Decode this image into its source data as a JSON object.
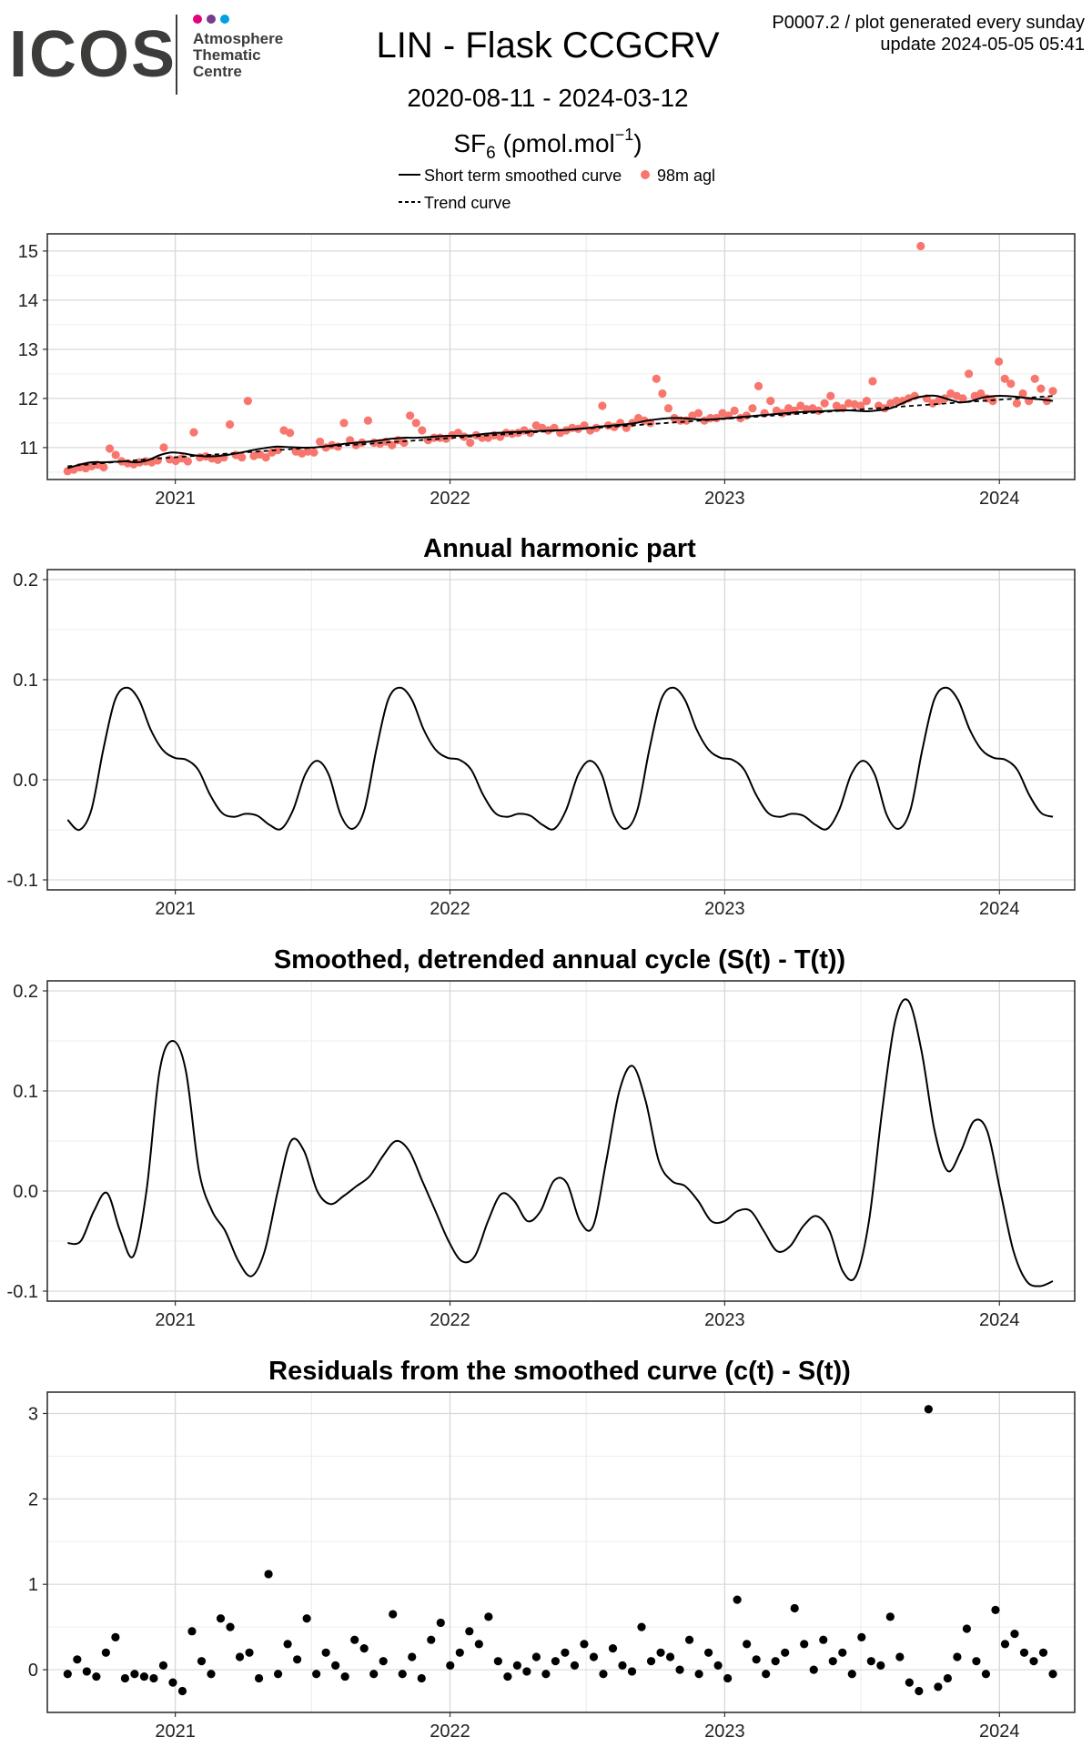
{
  "header": {
    "logo_text": "ICOS",
    "logo_subtitle": [
      "Atmosphere",
      "Thematic",
      "Centre"
    ],
    "logo_dot_colors": [
      "#e5007e",
      "#7a3b8f",
      "#00a0e3"
    ],
    "title": "LIN - Flask CCGCRV",
    "date_range": "2020-08-11 - 2024-03-12",
    "species_main": "SF",
    "species_sub": "6",
    "species_unit_prefix": " (ρmol.mol",
    "species_unit_sup": "−1",
    "species_unit_suffix": ")",
    "info_line1": "P0007.2 / plot generated every sunday",
    "info_line2": "update  2024-05-05 05:41"
  },
  "legend": {
    "smoothed_label": "Short term smoothed curve",
    "points_label": "98m agl",
    "trend_label": "Trend curve"
  },
  "colors": {
    "points": "#f8766d",
    "line": "#000000",
    "grid_major": "#d9d9d9",
    "grid_minor": "#eeeeee"
  },
  "chart_data": [
    {
      "type": "scatter",
      "title": "",
      "xlabel": "",
      "ylabel": "",
      "x_range": [
        "2020-07-15",
        "2024-04-10"
      ],
      "xticks": [
        "2021",
        "2022",
        "2023",
        "2024"
      ],
      "ylim": [
        10.35,
        15.35
      ],
      "yticks": [
        11,
        12,
        13,
        14,
        15
      ],
      "grid": true,
      "series": [
        {
          "name": "98m agl",
          "style": "points",
          "color": "#f8766d",
          "x_start": "2020-08-11",
          "x_end": "2024-03-12",
          "y": [
            10.52,
            10.55,
            10.6,
            10.58,
            10.62,
            10.65,
            10.6,
            10.98,
            10.85,
            10.72,
            10.68,
            10.66,
            10.7,
            10.72,
            10.7,
            10.74,
            11.0,
            10.76,
            10.73,
            10.78,
            10.72,
            11.31,
            10.8,
            10.82,
            10.78,
            10.75,
            10.8,
            11.47,
            10.85,
            10.8,
            11.95,
            10.83,
            10.86,
            10.8,
            10.9,
            10.95,
            11.35,
            11.3,
            10.92,
            10.88,
            10.92,
            10.9,
            11.12,
            11.0,
            11.05,
            11.02,
            11.5,
            11.15,
            11.05,
            11.1,
            11.55,
            11.1,
            11.08,
            11.12,
            11.05,
            11.15,
            11.1,
            11.65,
            11.5,
            11.35,
            11.15,
            11.2,
            11.2,
            11.18,
            11.25,
            11.3,
            11.22,
            11.1,
            11.25,
            11.2,
            11.2,
            11.25,
            11.22,
            11.3,
            11.28,
            11.3,
            11.35,
            11.3,
            11.45,
            11.4,
            11.35,
            11.4,
            11.3,
            11.35,
            11.4,
            11.38,
            11.45,
            11.35,
            11.4,
            11.85,
            11.45,
            11.42,
            11.5,
            11.4,
            11.5,
            11.6,
            11.55,
            11.5,
            12.4,
            12.1,
            11.8,
            11.6,
            11.55,
            11.55,
            11.65,
            11.7,
            11.55,
            11.6,
            11.6,
            11.7,
            11.65,
            11.75,
            11.6,
            11.65,
            11.8,
            12.25,
            11.7,
            11.95,
            11.75,
            11.7,
            11.8,
            11.75,
            11.85,
            11.78,
            11.8,
            11.75,
            11.9,
            12.05,
            11.85,
            11.8,
            11.9,
            11.88,
            11.85,
            11.95,
            12.35,
            11.85,
            11.8,
            11.9,
            11.95,
            11.95,
            12.0,
            12.05,
            15.1,
            12.0,
            11.9,
            11.95,
            12.0,
            12.1,
            12.05,
            12.0,
            12.5,
            12.05,
            12.1,
            12.0,
            11.95,
            12.75,
            12.4,
            12.3,
            11.9,
            12.1,
            11.95,
            12.4,
            12.2,
            11.95,
            12.15
          ]
        },
        {
          "name": "Short term smoothed curve",
          "style": "solid",
          "color": "#000000",
          "x_start": "2020-08-11",
          "x_end": "2024-03-12",
          "y": [
            10.58,
            10.65,
            10.7,
            10.7,
            10.71,
            10.72,
            10.7,
            10.75,
            10.85,
            10.9,
            10.88,
            10.84,
            10.82,
            10.83,
            10.86,
            10.9,
            10.95,
            10.99,
            11.02,
            11.01,
            11.0,
            11.0,
            11.02,
            11.05,
            11.08,
            11.1,
            11.12,
            11.15,
            11.18,
            11.2,
            11.2,
            11.21,
            11.23,
            11.24,
            11.24,
            11.25,
            11.28,
            11.3,
            11.31,
            11.32,
            11.33,
            11.34,
            11.35,
            11.36,
            11.38,
            11.4,
            11.43,
            11.45,
            11.47,
            11.5,
            11.55,
            11.58,
            11.6,
            11.6,
            11.58,
            11.57,
            11.58,
            11.6,
            11.62,
            11.64,
            11.66,
            11.68,
            11.7,
            11.72,
            11.73,
            11.74,
            11.75,
            11.76,
            11.75,
            11.74,
            11.76,
            11.8,
            11.9,
            12.0,
            12.05,
            12.05,
            11.98,
            11.92,
            11.95,
            12.02,
            12.05,
            12.05,
            12.03,
            12.0,
            11.98,
            11.95
          ]
        },
        {
          "name": "Trend curve",
          "style": "dashed",
          "color": "#000000",
          "x_start": "2020-08-11",
          "x_end": "2024-03-12",
          "y": [
            10.62,
            10.67,
            10.72,
            10.77,
            10.81,
            10.85,
            10.89,
            10.93,
            10.97,
            11.01,
            11.05,
            11.09,
            11.13,
            11.17,
            11.21,
            11.25,
            11.29,
            11.33,
            11.37,
            11.41,
            11.45,
            11.49,
            11.53,
            11.57,
            11.61,
            11.65,
            11.69,
            11.73,
            11.77,
            11.81,
            11.85,
            11.89,
            11.93,
            11.97,
            12.01,
            12.05
          ]
        }
      ]
    },
    {
      "type": "line",
      "title": "Annual harmonic part",
      "xlabel": "",
      "ylabel": "",
      "x_range": [
        "2020-07-15",
        "2024-04-10"
      ],
      "xticks": [
        "2021",
        "2022",
        "2023",
        "2024"
      ],
      "ylim": [
        -0.11,
        0.21
      ],
      "yticks": [
        -0.1,
        0.0,
        0.1,
        0.2
      ],
      "grid": true,
      "series": [
        {
          "x_start": "2020-08-11",
          "x_end": "2024-03-12",
          "y": [
            -0.04,
            -0.05,
            -0.03,
            0.03,
            0.08,
            0.092,
            0.08,
            0.05,
            0.03,
            0.022,
            0.02,
            0.01,
            -0.015,
            -0.033,
            -0.037,
            -0.034,
            -0.036,
            -0.045,
            -0.049,
            -0.03,
            0.005,
            0.019,
            0.005,
            -0.035,
            -0.049,
            -0.03,
            0.03,
            0.08,
            0.092,
            0.08,
            0.05,
            0.03,
            0.022,
            0.02,
            0.01,
            -0.015,
            -0.033,
            -0.037,
            -0.034,
            -0.036,
            -0.045,
            -0.049,
            -0.03,
            0.005,
            0.019,
            0.005,
            -0.035,
            -0.049,
            -0.03,
            0.03,
            0.08,
            0.092,
            0.08,
            0.05,
            0.03,
            0.022,
            0.02,
            0.01,
            -0.015,
            -0.033,
            -0.037,
            -0.034,
            -0.036,
            -0.045,
            -0.049,
            -0.03,
            0.005,
            0.019,
            0.005,
            -0.035,
            -0.049,
            -0.03,
            0.03,
            0.08,
            0.092,
            0.08,
            0.05,
            0.03,
            0.022,
            0.02,
            0.01,
            -0.015,
            -0.033,
            -0.037
          ]
        }
      ]
    },
    {
      "type": "line",
      "title": "Smoothed, detrended annual cycle (S(t) - T(t))",
      "xlabel": "",
      "ylabel": "",
      "x_range": [
        "2020-07-15",
        "2024-04-10"
      ],
      "xticks": [
        "2021",
        "2022",
        "2023",
        "2024"
      ],
      "ylim": [
        -0.11,
        0.21
      ],
      "yticks": [
        -0.1,
        0.0,
        0.1,
        0.2
      ],
      "grid": true,
      "series": [
        {
          "x_start": "2020-08-11",
          "x_end": "2024-03-12",
          "y": [
            -0.052,
            -0.05,
            -0.02,
            -0.002,
            -0.04,
            -0.065,
            0.0,
            0.12,
            0.15,
            0.12,
            0.02,
            -0.02,
            -0.04,
            -0.07,
            -0.085,
            -0.06,
            0.0,
            0.05,
            0.04,
            0.0,
            -0.013,
            -0.005,
            0.005,
            0.015,
            0.035,
            0.05,
            0.04,
            0.01,
            -0.02,
            -0.05,
            -0.07,
            -0.065,
            -0.03,
            -0.003,
            -0.01,
            -0.03,
            -0.02,
            0.01,
            0.008,
            -0.03,
            -0.035,
            0.03,
            0.1,
            0.125,
            0.09,
            0.03,
            0.01,
            0.005,
            -0.01,
            -0.03,
            -0.03,
            -0.02,
            -0.02,
            -0.04,
            -0.06,
            -0.055,
            -0.035,
            -0.025,
            -0.04,
            -0.08,
            -0.085,
            -0.03,
            0.08,
            0.17,
            0.19,
            0.14,
            0.06,
            0.02,
            0.04,
            0.07,
            0.06,
            0.0,
            -0.06,
            -0.09,
            -0.095,
            -0.09
          ]
        }
      ]
    },
    {
      "type": "scatter",
      "title": "Residuals from the smoothed curve (c(t) - S(t))",
      "xlabel": "",
      "ylabel": "",
      "x_range": [
        "2020-07-15",
        "2024-04-10"
      ],
      "xticks": [
        "2021",
        "2022",
        "2023",
        "2024"
      ],
      "ylim": [
        -0.5,
        3.25
      ],
      "yticks": [
        0,
        1,
        2,
        3
      ],
      "grid": true,
      "series": [
        {
          "x_start": "2020-08-11",
          "x_end": "2024-03-12",
          "y": [
            -0.05,
            0.12,
            -0.02,
            -0.08,
            0.2,
            0.38,
            -0.1,
            -0.05,
            -0.08,
            -0.1,
            0.05,
            -0.15,
            -0.25,
            0.45,
            0.1,
            -0.05,
            0.6,
            0.5,
            0.15,
            0.2,
            -0.1,
            1.12,
            -0.05,
            0.3,
            0.12,
            0.6,
            -0.05,
            0.2,
            0.05,
            -0.08,
            0.35,
            0.25,
            -0.05,
            0.1,
            0.65,
            -0.05,
            0.15,
            -0.1,
            0.35,
            0.55,
            0.05,
            0.2,
            0.45,
            0.3,
            0.62,
            0.1,
            -0.08,
            0.05,
            -0.02,
            0.15,
            -0.05,
            0.1,
            0.2,
            0.05,
            0.3,
            0.15,
            -0.05,
            0.25,
            0.05,
            -0.02,
            0.5,
            0.1,
            0.2,
            0.15,
            0.0,
            0.35,
            -0.05,
            0.2,
            0.05,
            -0.1,
            0.82,
            0.3,
            0.12,
            -0.05,
            0.1,
            0.2,
            0.72,
            0.3,
            0.0,
            0.35,
            0.1,
            0.2,
            -0.05,
            0.38,
            0.1,
            0.05,
            0.62,
            0.15,
            -0.15,
            -0.25,
            3.05,
            -0.2,
            -0.1,
            0.15,
            0.48,
            0.1,
            -0.05,
            0.7,
            0.3,
            0.42,
            0.2,
            0.1,
            0.2,
            -0.05
          ]
        }
      ]
    }
  ]
}
